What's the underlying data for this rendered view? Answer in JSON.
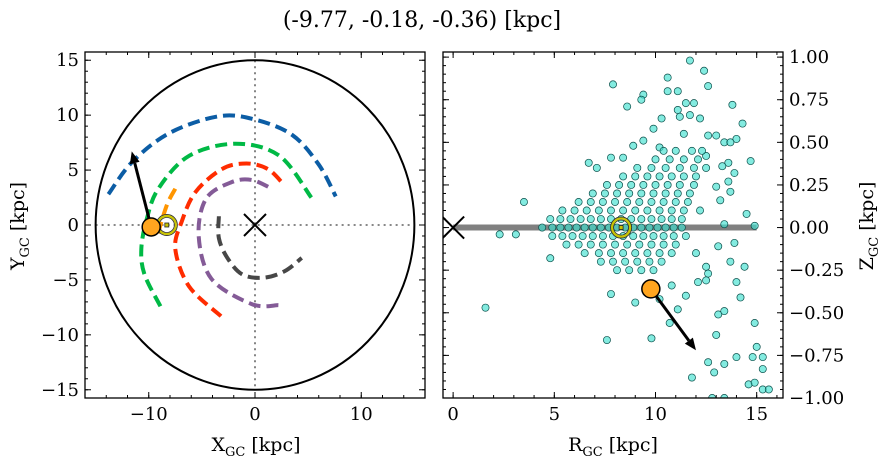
{
  "title": "(-9.77, -0.18, -0.36) [kpc]",
  "chart_data": [
    {
      "type": "line",
      "panel": "left",
      "xlabel": {
        "main": "X",
        "sub": "GC",
        "unit": " [kpc]"
      },
      "ylabel": {
        "main": "Y",
        "sub": "GC",
        "unit": " [kpc]"
      },
      "xlim": [
        -16,
        16
      ],
      "ylim": [
        -15.75,
        15.75
      ],
      "xticks": [
        -10,
        0,
        10
      ],
      "xtick_labels": [
        "−10",
        "0",
        "10"
      ],
      "yticks": [
        -15,
        -10,
        -5,
        0,
        5,
        10,
        15
      ],
      "ytick_labels": [
        "−15",
        "−10",
        "−5",
        "0",
        "5",
        "10",
        "15"
      ],
      "x_minor_step": 2,
      "y_minor_step": 1,
      "boundary_circle_radius": 15,
      "center_marker": [
        0,
        0
      ],
      "arms": [
        {
          "color": "#0c5da5",
          "points": [
            [
              -13.8,
              2.8
            ],
            [
              -11.5,
              5.8
            ],
            [
              -8,
              8.4
            ],
            [
              -3.4,
              9.9
            ],
            [
              0,
              9.6
            ],
            [
              3.5,
              8.2
            ],
            [
              6,
              5.5
            ],
            [
              7.6,
              2.6
            ]
          ]
        },
        {
          "color": "#00b945",
          "points": [
            [
              -8.9,
              -7.4
            ],
            [
              -10.4,
              -4.5
            ],
            [
              -10.7,
              -2.2
            ],
            [
              -10.2,
              0.5
            ],
            [
              -9.1,
              3.3
            ],
            [
              -6.2,
              6.3
            ],
            [
              -1.8,
              7.4
            ],
            [
              2.3,
              6.3
            ],
            [
              5.3,
              2.5
            ]
          ]
        },
        {
          "color": "#ff2c00",
          "points": [
            [
              -3.2,
              -8.3
            ],
            [
              -6.2,
              -5.6
            ],
            [
              -7.5,
              -2.2
            ],
            [
              -6.9,
              0.3
            ],
            [
              -5.6,
              3.0
            ],
            [
              -3.1,
              5.1
            ],
            [
              -0.8,
              5.6
            ],
            [
              1.2,
              5.1
            ],
            [
              2.7,
              3.7
            ]
          ]
        },
        {
          "color": "#845b97",
          "points": [
            [
              2.2,
              -7.3
            ],
            [
              -0.3,
              -7.2
            ],
            [
              -4.1,
              -4.9
            ],
            [
              -5.3,
              -1.0
            ],
            [
              -4.6,
              2.4
            ],
            [
              -2.2,
              3.9
            ],
            [
              -0.3,
              4.1
            ],
            [
              1.6,
              3.3
            ]
          ]
        },
        {
          "color": "#474747",
          "points": [
            [
              -3.4,
              0.8
            ],
            [
              -3.4,
              -1.2
            ],
            [
              -2.6,
              -3.0
            ],
            [
              -1.2,
              -4.5
            ],
            [
              0.8,
              -4.8
            ],
            [
              2.8,
              -4.2
            ],
            [
              4.4,
              -3.0
            ]
          ]
        },
        {
          "color": "#ff9500",
          "points": [
            [
              -7.5,
              3.3
            ],
            [
              -8.3,
              1.8
            ],
            [
              -9.2,
              -1.0
            ]
          ]
        }
      ],
      "star": {
        "position": [
          -9.77,
          -0.18
        ],
        "arrow_to": [
          -11.6,
          6.7
        ],
        "color": "#ffa51f"
      },
      "target": {
        "position": [
          -8.3,
          0
        ],
        "color": "#c9c400"
      }
    },
    {
      "type": "scatter",
      "panel": "right",
      "xlabel": {
        "main": "R",
        "sub": "GC",
        "unit": " [kpc]"
      },
      "ylabel": {
        "main": "Z",
        "sub": "GC",
        "unit": " [kpc]"
      },
      "xlim": [
        -0.5,
        16.3
      ],
      "ylim": [
        -1.0,
        1.03
      ],
      "xticks": [
        0,
        5,
        10,
        15
      ],
      "xtick_labels": [
        "0",
        "5",
        "10",
        "15"
      ],
      "yticks": [
        -1,
        -0.75,
        -0.5,
        -0.25,
        0,
        0.25,
        0.5,
        0.75,
        1
      ],
      "ytick_labels": [
        "−1.00",
        "−0.75",
        "−0.50",
        "−0.25",
        "0.00",
        "0.25",
        "0.50",
        "0.75",
        "1.00"
      ],
      "x_minor_step": 1,
      "y_minor_step": 0.05,
      "yaxis_side": "right",
      "disk_line": {
        "from": 0,
        "to": 15,
        "z": 0,
        "color": "#808080"
      },
      "center_marker": [
        0,
        0
      ],
      "marker_fill": "#40e0d0",
      "marker_edge": "#0b4f4a",
      "points": [
        [
          11.7,
          0.98
        ],
        [
          12.4,
          0.92
        ],
        [
          7.9,
          0.84
        ],
        [
          10.6,
          0.88
        ],
        [
          12.6,
          0.83
        ],
        [
          10.6,
          0.8
        ],
        [
          11.1,
          0.8
        ],
        [
          9.4,
          0.78
        ],
        [
          9.3,
          0.75
        ],
        [
          8.6,
          0.71
        ],
        [
          11.5,
          0.73
        ],
        [
          11.9,
          0.73
        ],
        [
          13.8,
          0.72
        ],
        [
          11.1,
          0.69
        ],
        [
          11.2,
          0.65
        ],
        [
          11.7,
          0.66
        ],
        [
          12.2,
          0.64
        ],
        [
          10.3,
          0.64
        ],
        [
          14.3,
          0.61
        ],
        [
          9.9,
          0.58
        ],
        [
          11.4,
          0.55
        ],
        [
          12.6,
          0.54
        ],
        [
          13.0,
          0.54
        ],
        [
          13.4,
          0.5
        ],
        [
          13.7,
          0.5
        ],
        [
          14.0,
          0.52
        ],
        [
          8.9,
          0.48
        ],
        [
          9.4,
          0.51
        ],
        [
          10.2,
          0.47
        ],
        [
          14.7,
          0.39
        ],
        [
          6.7,
          0.38
        ],
        [
          7.1,
          0.35
        ],
        [
          7.8,
          0.41
        ],
        [
          8.4,
          0.41
        ],
        [
          3.5,
          0.15
        ],
        [
          2.3,
          -0.04
        ],
        [
          3.1,
          -0.04
        ],
        [
          1.6,
          -0.47
        ],
        [
          14.5,
          0.08
        ],
        [
          14.9,
          0.01
        ],
        [
          13.4,
          0.02
        ],
        [
          13.9,
          -0.09
        ],
        [
          4.8,
          -0.18
        ],
        [
          7.8,
          -0.39
        ],
        [
          7.6,
          -0.66
        ],
        [
          9.8,
          -0.65
        ],
        [
          9.0,
          -0.44
        ],
        [
          10.7,
          -0.56
        ],
        [
          11.1,
          -0.48
        ],
        [
          11.8,
          -0.88
        ],
        [
          12.6,
          -0.79
        ],
        [
          12.9,
          -0.85
        ],
        [
          13.4,
          -0.8
        ],
        [
          14.0,
          -0.76
        ],
        [
          14.8,
          -0.76
        ],
        [
          15.3,
          -0.76
        ],
        [
          15.0,
          -0.7
        ],
        [
          15.3,
          -0.83
        ],
        [
          14.9,
          -0.56
        ],
        [
          14.6,
          -0.92
        ],
        [
          14.9,
          -0.91
        ],
        [
          15.3,
          -0.95
        ],
        [
          15.6,
          -0.95
        ],
        [
          12.8,
          -1.0
        ],
        [
          13.4,
          -1.0
        ],
        [
          13.0,
          -0.63
        ],
        [
          13.1,
          -0.51
        ],
        [
          13.4,
          -0.49
        ],
        [
          14.2,
          -0.41
        ],
        [
          14.4,
          -0.23
        ],
        [
          14.0,
          -0.32
        ],
        [
          13.7,
          -0.2
        ],
        [
          13.1,
          -0.11
        ],
        [
          12.5,
          -0.23
        ],
        [
          12.6,
          -0.27
        ],
        [
          12.1,
          -0.32
        ],
        [
          12.5,
          -0.31
        ],
        [
          13.6,
          0.38
        ],
        [
          13.9,
          0.32
        ],
        [
          13.6,
          0.27
        ],
        [
          13.7,
          0.21
        ],
        [
          13.0,
          0.24
        ],
        [
          13.2,
          0.16
        ],
        [
          13.3,
          0.36
        ],
        [
          10.8,
          -0.34
        ],
        [
          11.5,
          -0.4
        ],
        [
          10.2,
          -0.42
        ],
        [
          12.0,
          -0.15
        ],
        [
          12.2,
          0.1
        ],
        [
          12.5,
          0.42
        ],
        [
          4.4,
          0.0
        ],
        [
          4.9,
          0.0
        ],
        [
          5.3,
          0.0
        ],
        [
          5.7,
          0.0
        ],
        [
          6.1,
          0.0
        ],
        [
          6.5,
          0.0
        ],
        [
          6.9,
          0.0
        ],
        [
          7.3,
          0.0
        ],
        [
          7.7,
          0.0
        ],
        [
          8.1,
          0.0
        ],
        [
          8.5,
          0.0
        ],
        [
          8.9,
          0.0
        ],
        [
          9.3,
          0.0
        ],
        [
          9.7,
          0.0
        ],
        [
          10.1,
          0.0
        ],
        [
          10.5,
          0.0
        ],
        [
          10.9,
          0.0
        ],
        [
          11.3,
          0.0
        ],
        [
          4.8,
          0.05
        ],
        [
          5.3,
          0.05
        ],
        [
          5.8,
          0.05
        ],
        [
          6.3,
          0.05
        ],
        [
          6.8,
          0.05
        ],
        [
          7.3,
          0.05
        ],
        [
          7.8,
          0.05
        ],
        [
          8.3,
          0.05
        ],
        [
          8.8,
          0.05
        ],
        [
          9.3,
          0.05
        ],
        [
          9.8,
          0.05
        ],
        [
          10.3,
          0.05
        ],
        [
          10.8,
          0.05
        ],
        [
          11.3,
          0.05
        ],
        [
          4.9,
          -0.05
        ],
        [
          5.4,
          -0.05
        ],
        [
          5.9,
          -0.05
        ],
        [
          6.4,
          -0.05
        ],
        [
          6.9,
          -0.05
        ],
        [
          7.4,
          -0.05
        ],
        [
          7.9,
          -0.05
        ],
        [
          8.4,
          -0.05
        ],
        [
          8.9,
          -0.05
        ],
        [
          9.4,
          -0.05
        ],
        [
          9.9,
          -0.05
        ],
        [
          10.4,
          -0.05
        ],
        [
          10.9,
          -0.05
        ],
        [
          11.5,
          -0.05
        ],
        [
          5.4,
          0.1
        ],
        [
          6.0,
          0.1
        ],
        [
          6.6,
          0.1
        ],
        [
          7.2,
          0.1
        ],
        [
          7.8,
          0.1
        ],
        [
          8.4,
          0.1
        ],
        [
          9.0,
          0.1
        ],
        [
          9.6,
          0.1
        ],
        [
          10.2,
          0.1
        ],
        [
          10.8,
          0.1
        ],
        [
          11.4,
          0.1
        ],
        [
          5.6,
          -0.1
        ],
        [
          6.2,
          -0.1
        ],
        [
          6.8,
          -0.1
        ],
        [
          7.4,
          -0.1
        ],
        [
          8.0,
          -0.1
        ],
        [
          8.6,
          -0.1
        ],
        [
          9.2,
          -0.1
        ],
        [
          9.8,
          -0.1
        ],
        [
          10.4,
          -0.1
        ],
        [
          11.0,
          -0.1
        ],
        [
          6.2,
          0.15
        ],
        [
          6.8,
          0.15
        ],
        [
          7.4,
          0.15
        ],
        [
          8.0,
          0.15
        ],
        [
          8.6,
          0.15
        ],
        [
          9.2,
          0.15
        ],
        [
          9.8,
          0.15
        ],
        [
          10.4,
          0.15
        ],
        [
          11.0,
          0.15
        ],
        [
          11.6,
          0.15
        ],
        [
          6.5,
          -0.15
        ],
        [
          7.2,
          -0.15
        ],
        [
          7.8,
          -0.15
        ],
        [
          8.4,
          -0.15
        ],
        [
          9.0,
          -0.15
        ],
        [
          9.6,
          -0.15
        ],
        [
          10.2,
          -0.15
        ],
        [
          10.8,
          -0.15
        ],
        [
          6.9,
          0.2
        ],
        [
          7.5,
          0.2
        ],
        [
          8.1,
          0.2
        ],
        [
          8.7,
          0.2
        ],
        [
          9.3,
          0.2
        ],
        [
          9.9,
          0.2
        ],
        [
          10.5,
          0.2
        ],
        [
          11.1,
          0.2
        ],
        [
          11.7,
          0.2
        ],
        [
          7.3,
          -0.2
        ],
        [
          7.9,
          -0.2
        ],
        [
          8.5,
          -0.2
        ],
        [
          9.1,
          -0.2
        ],
        [
          9.7,
          -0.2
        ],
        [
          10.3,
          -0.2
        ],
        [
          7.6,
          0.25
        ],
        [
          8.2,
          0.25
        ],
        [
          8.8,
          0.25
        ],
        [
          9.4,
          0.25
        ],
        [
          10.0,
          0.25
        ],
        [
          10.6,
          0.25
        ],
        [
          11.2,
          0.25
        ],
        [
          11.9,
          0.25
        ],
        [
          8.1,
          -0.25
        ],
        [
          8.7,
          -0.25
        ],
        [
          9.3,
          -0.25
        ],
        [
          9.9,
          -0.25
        ],
        [
          8.4,
          0.3
        ],
        [
          9.0,
          0.3
        ],
        [
          9.6,
          0.3
        ],
        [
          10.2,
          0.3
        ],
        [
          10.8,
          0.3
        ],
        [
          11.4,
          0.3
        ],
        [
          12.0,
          0.3
        ],
        [
          9.1,
          0.35
        ],
        [
          9.8,
          0.35
        ],
        [
          10.5,
          0.35
        ],
        [
          11.2,
          0.35
        ],
        [
          11.9,
          0.35
        ],
        [
          12.5,
          0.35
        ],
        [
          10.0,
          0.4
        ],
        [
          10.7,
          0.4
        ],
        [
          11.4,
          0.4
        ],
        [
          12.1,
          0.4
        ],
        [
          10.4,
          0.45
        ],
        [
          11.0,
          0.45
        ],
        [
          11.8,
          0.45
        ],
        [
          12.3,
          0.45
        ]
      ],
      "star": {
        "position": [
          9.77,
          -0.36
        ],
        "arrow_to": [
          12.0,
          -0.72
        ],
        "color": "#ffa51f"
      },
      "target": {
        "position": [
          8.3,
          0
        ],
        "color": "#c9c400"
      }
    }
  ]
}
